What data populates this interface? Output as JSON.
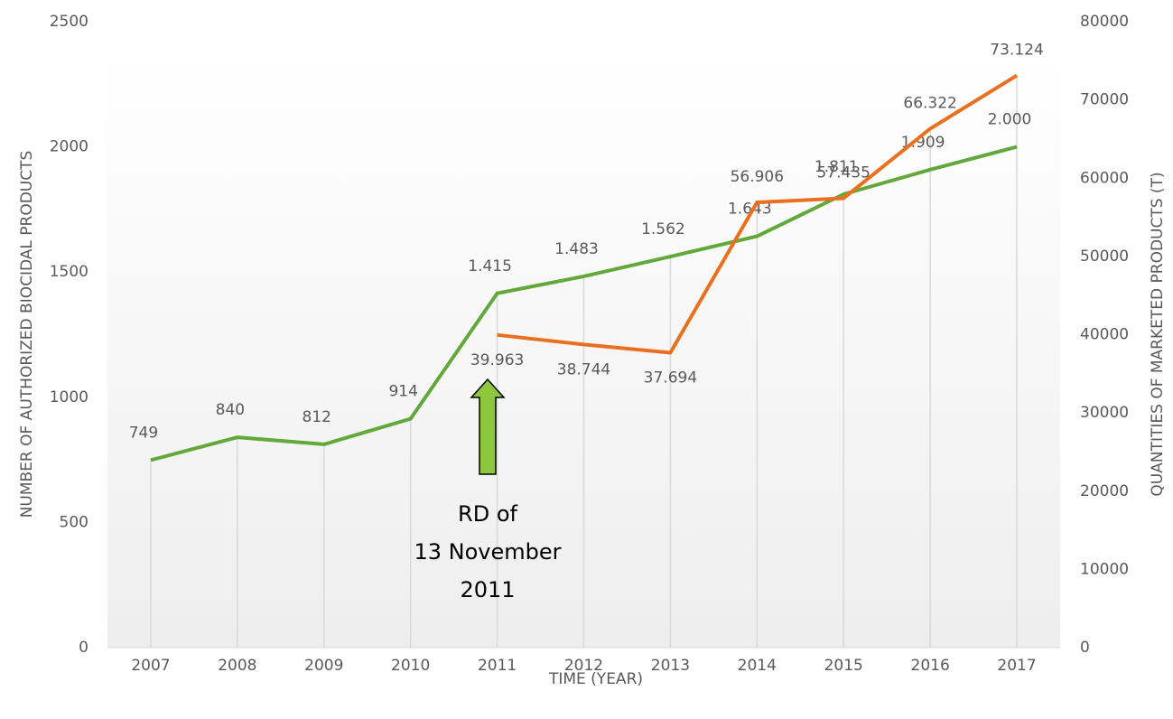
{
  "chart_data": {
    "type": "line",
    "categories": [
      "2007",
      "2008",
      "2009",
      "2010",
      "2011",
      "2012",
      "2013",
      "2014",
      "2015",
      "2016",
      "2017"
    ],
    "series": [
      {
        "name": "Number of authorized biocidal products",
        "color": "#62a83a",
        "values": [
          749,
          840,
          812,
          914,
          1415,
          1483,
          1562,
          1643,
          1811,
          1909,
          2000
        ],
        "value_labels": [
          "749",
          "840",
          "812",
          "914",
          "1.415",
          "1.483",
          "1.562",
          "1.643",
          "1.811",
          "1.909",
          "2.000"
        ]
      },
      {
        "name": "Quantities of marketed products (T)",
        "color": "#e8701f",
        "axis": "y2",
        "values": [
          null,
          null,
          null,
          null,
          39963,
          38744,
          37694,
          56906,
          57435,
          66322,
          73124
        ],
        "value_labels": [
          null,
          null,
          null,
          null,
          "39.963",
          "38.744",
          "37.694",
          "56.906",
          "57.435",
          "66.322",
          "73.124"
        ]
      }
    ],
    "ylim": [
      0,
      2500
    ],
    "yticks": [
      0,
      500,
      1000,
      1500,
      2000,
      2500
    ],
    "y2lim": [
      0,
      80000
    ],
    "y2ticks": [
      0,
      10000,
      20000,
      30000,
      40000,
      50000,
      60000,
      70000,
      80000
    ],
    "ylabel": "NUMBER OF AUTHORIZED BIOCIDAL PRODUCTS",
    "y2label": "QUANTITIES OF MARKETED PRODUCTS (T)",
    "xlabel": "TIME (YEAR)",
    "annotation": [
      "RD of",
      "13 November",
      "2011"
    ]
  }
}
